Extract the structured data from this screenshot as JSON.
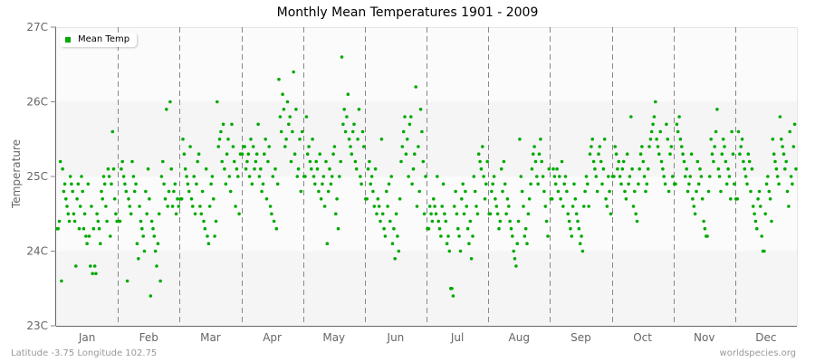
{
  "title": "Monthly Mean Temperatures 1901 - 2009",
  "y_axis_label": "Temperature",
  "legend": {
    "label": "Mean Temp",
    "color": "#00aa00"
  },
  "footer": {
    "left": "Latitude -3.75 Longitude 102.75",
    "right": "worldspecies.org"
  },
  "colors": {
    "dot": "#00aa00",
    "band_dark": "#f5f5f5",
    "band_light": "#fbfbfb",
    "divider": "#888888",
    "axis": "#666666"
  },
  "chart_data": {
    "type": "scatter",
    "title": "Monthly Mean Temperatures 1901 - 2009",
    "xlabel": "",
    "ylabel": "Temperature",
    "ylim": [
      23,
      27
    ],
    "yticks": [
      "23C",
      "24C",
      "25C",
      "26C",
      "27C"
    ],
    "categories": [
      "Jan",
      "Feb",
      "Mar",
      "Apr",
      "May",
      "Jun",
      "Jul",
      "Aug",
      "Sep",
      "Oct",
      "Nov",
      "Dec"
    ],
    "legend": [
      "Mean Temp"
    ],
    "legend_position": "top-left",
    "grid": false,
    "series": [
      {
        "name": "Mean Temp",
        "values": [
          [
            24.3,
            24.3,
            24.4,
            25.2,
            23.6,
            25.1,
            24.8,
            24.9,
            24.7,
            24.6,
            24.5,
            24.4,
            25.0,
            24.9,
            24.8,
            24.5,
            24.4,
            23.8,
            24.7,
            24.9,
            24.3,
            24.6,
            25.0,
            24.8,
            24.3,
            24.5,
            24.2,
            24.1,
            24.9,
            24.2,
            23.8,
            24.6,
            23.7,
            24.3,
            23.8,
            23.7,
            24.5,
            24.4,
            24.3,
            24.1,
            24.8,
            24.7,
            25.0,
            24.9,
            24.6,
            24.4,
            25.1,
            25.0,
            24.2,
            24.9,
            25.6,
            25.1,
            24.7,
            24.5,
            24.4
          ],
          [
            24.4,
            24.4,
            25.1,
            25.2,
            25.0,
            24.9,
            24.8,
            23.6,
            24.7,
            24.6,
            24.5,
            25.2,
            25.0,
            24.8,
            24.9,
            24.1,
            23.9,
            24.6,
            24.4,
            24.3,
            24.2,
            24.0,
            24.8,
            24.5,
            25.1,
            24.7,
            23.4,
            24.4,
            24.3,
            24.2,
            24.0,
            23.8,
            24.1,
            24.5,
            23.6,
            25.0,
            25.2,
            24.9,
            24.7,
            25.9,
            24.6,
            24.8,
            26.0,
            25.1,
            24.6,
            24.8,
            24.9,
            24.5,
            24.7,
            24.6
          ],
          [
            24.7,
            24.7,
            25.5,
            25.3,
            25.1,
            25.0,
            24.9,
            24.8,
            25.4,
            24.7,
            24.6,
            25.0,
            24.5,
            24.9,
            25.2,
            25.3,
            24.6,
            24.5,
            24.8,
            24.4,
            24.3,
            25.1,
            24.2,
            24.1,
            24.6,
            24.9,
            25.0,
            24.7,
            24.2,
            24.4,
            26.0,
            25.4,
            25.5,
            25.6,
            25.2,
            25.7,
            25.1,
            24.9,
            25.3,
            25.5,
            25.0,
            24.8,
            25.7,
            25.4,
            25.2,
            24.6,
            25.1,
            25.0,
            24.5,
            25.3
          ],
          [
            25.3,
            25.4,
            25.4,
            25.1,
            25.2,
            25.3,
            25.0,
            25.5,
            24.9,
            25.4,
            25.1,
            25.2,
            25.3,
            25.7,
            25.0,
            25.1,
            24.8,
            24.9,
            25.3,
            25.5,
            24.7,
            25.2,
            25.4,
            24.6,
            24.5,
            25.0,
            24.4,
            25.1,
            24.3,
            24.9,
            26.3,
            25.8,
            25.6,
            26.1,
            25.9,
            25.4,
            25.5,
            26.0,
            25.7,
            25.8,
            25.2,
            25.6,
            26.4,
            25.3,
            25.9,
            25.0,
            25.1,
            25.5,
            24.8,
            25.6
          ],
          [
            25.0,
            25.0,
            25.8,
            25.3,
            25.4,
            25.2,
            25.1,
            25.5,
            25.0,
            24.9,
            25.2,
            25.1,
            24.8,
            25.3,
            24.7,
            24.9,
            25.0,
            24.6,
            25.2,
            24.1,
            24.8,
            25.1,
            24.9,
            25.0,
            25.3,
            25.4,
            24.5,
            24.7,
            24.3,
            25.0,
            25.2,
            26.6,
            25.7,
            25.9,
            25.6,
            25.8,
            26.1,
            25.5,
            25.4,
            25.3,
            25.6,
            25.7,
            25.2,
            25.1,
            25.5,
            25.9,
            25.0,
            24.9,
            25.6,
            25.4
          ],
          [
            24.7,
            24.7,
            25.1,
            25.2,
            24.9,
            25.0,
            24.8,
            24.6,
            25.1,
            24.5,
            24.7,
            24.6,
            24.4,
            25.5,
            24.5,
            24.3,
            24.2,
            24.8,
            24.6,
            24.9,
            24.4,
            25.0,
            24.1,
            24.3,
            23.9,
            24.5,
            24.2,
            24.0,
            24.7,
            25.2,
            25.4,
            25.6,
            25.8,
            25.3,
            25.5,
            25.0,
            25.7,
            25.8,
            24.9,
            25.1,
            25.3,
            26.2,
            24.6,
            25.4,
            24.8,
            25.9,
            25.6,
            25.2,
            24.5,
            25.0
          ],
          [
            24.3,
            24.3,
            24.6,
            24.5,
            24.4,
            24.7,
            24.6,
            24.5,
            25.0,
            24.4,
            24.3,
            24.2,
            24.6,
            24.9,
            24.5,
            24.4,
            24.1,
            24.2,
            24.0,
            23.5,
            23.5,
            23.4,
            24.6,
            24.8,
            24.5,
            24.3,
            24.2,
            24.0,
            24.7,
            24.9,
            24.5,
            24.8,
            24.6,
            24.3,
            24.1,
            24.4,
            23.9,
            24.2,
            25.0,
            24.8,
            24.6,
            24.5,
            25.3,
            25.2,
            25.1,
            25.4,
            25.0,
            24.7,
            24.9,
            25.2
          ],
          [
            24.5,
            24.5,
            24.8,
            24.9,
            25.0,
            24.7,
            24.6,
            24.5,
            24.3,
            24.4,
            25.1,
            24.8,
            25.2,
            24.9,
            24.5,
            24.7,
            24.6,
            24.4,
            24.3,
            24.2,
            24.0,
            23.9,
            23.8,
            24.1,
            24.4,
            25.5,
            25.0,
            24.8,
            24.6,
            24.2,
            24.3,
            24.1,
            24.5,
            24.7,
            24.9,
            25.1,
            25.3,
            25.4,
            25.2,
            25.0,
            24.9,
            25.3,
            25.5,
            25.2,
            25.0,
            24.8,
            24.6,
            24.4,
            24.2,
            25.1
          ],
          [
            24.7,
            24.7,
            25.1,
            25.0,
            24.9,
            25.1,
            24.8,
            25.0,
            24.7,
            25.2,
            24.6,
            24.9,
            25.0,
            24.8,
            24.5,
            24.4,
            24.3,
            24.2,
            24.6,
            24.9,
            24.7,
            24.5,
            24.4,
            24.3,
            24.1,
            24.2,
            24.0,
            24.6,
            24.8,
            25.0,
            24.9,
            24.6,
            25.3,
            25.4,
            25.5,
            25.2,
            25.1,
            25.0,
            24.8,
            25.3,
            25.4,
            25.2,
            24.9,
            25.1,
            25.5,
            24.7,
            24.6,
            25.0,
            24.8,
            24.5
          ],
          [
            25.0,
            25.0,
            25.4,
            25.3,
            25.1,
            25.2,
            25.0,
            24.9,
            25.1,
            25.2,
            24.8,
            24.7,
            25.3,
            24.9,
            25.0,
            25.8,
            25.1,
            24.6,
            24.8,
            24.5,
            24.4,
            24.9,
            25.1,
            25.3,
            25.4,
            25.2,
            25.0,
            24.8,
            24.9,
            25.1,
            25.4,
            25.5,
            25.6,
            25.7,
            25.8,
            26.0,
            25.5,
            25.4,
            25.3,
            25.6,
            25.2,
            25.1,
            25.0,
            24.9,
            25.7,
            25.5,
            24.8,
            25.3,
            25.4,
            25.0
          ],
          [
            24.9,
            24.9,
            25.7,
            25.6,
            25.8,
            25.5,
            25.4,
            25.3,
            25.2,
            25.0,
            25.1,
            24.8,
            24.9,
            25.0,
            25.3,
            24.7,
            24.6,
            24.5,
            24.8,
            25.2,
            24.9,
            25.1,
            25.0,
            24.7,
            24.4,
            24.3,
            24.2,
            24.2,
            24.8,
            25.0,
            25.5,
            25.3,
            25.2,
            25.4,
            25.6,
            25.9,
            25.1,
            25.0,
            24.8,
            25.3,
            25.5,
            25.4,
            25.2,
            24.9,
            25.1,
            25.0,
            24.7,
            25.6,
            25.3,
            24.9
          ],
          [
            24.7,
            24.7,
            25.6,
            25.3,
            25.4,
            25.5,
            25.2,
            25.1,
            25.0,
            24.9,
            25.3,
            25.2,
            24.8,
            25.1,
            24.6,
            24.5,
            24.4,
            24.3,
            24.7,
            24.8,
            24.6,
            24.2,
            24.0,
            24.0,
            24.5,
            24.9,
            25.0,
            24.8,
            24.7,
            24.4,
            25.5,
            25.3,
            25.2,
            25.1,
            25.0,
            24.9,
            25.8,
            25.5,
            25.4,
            25.3,
            25.1,
            25.2,
            24.8,
            24.6,
            25.6,
            25.0,
            24.9,
            25.4,
            25.7,
            25.1
          ]
        ]
      }
    ]
  }
}
